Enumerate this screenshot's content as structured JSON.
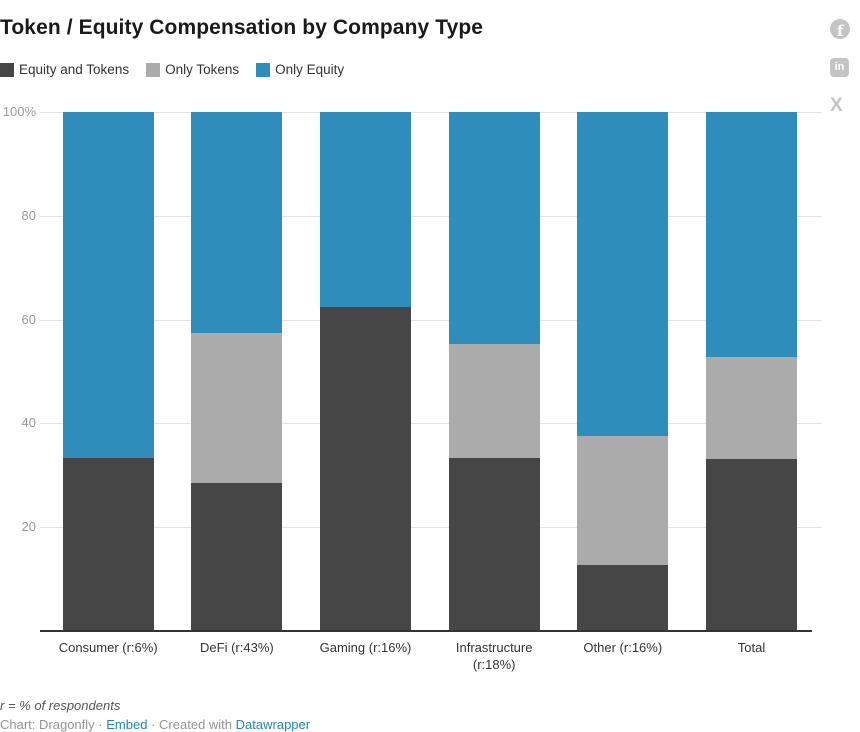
{
  "header": {
    "title": "Token / Equity Compensation by Company Type"
  },
  "social": {
    "facebook_glyph": "f",
    "linkedin_glyph": "in",
    "x_glyph": "X"
  },
  "chart_data": {
    "type": "bar",
    "stacked": true,
    "title": "Token / Equity Compensation by Company Type",
    "unit": "%",
    "categories": [
      "Consumer (r:6%)",
      "DeFi (r:43%)",
      "Gaming (r:16%)",
      "Infrastructure (r:18%)",
      "Other (r:16%)",
      "Total"
    ],
    "series": [
      {
        "name": "Equity and Tokens",
        "color": "#464646",
        "values": [
          33.3,
          28.6,
          62.4,
          33.3,
          12.7,
          33.1
        ]
      },
      {
        "name": "Only Tokens",
        "color": "#ababab",
        "values": [
          0,
          28.9,
          0,
          22.1,
          24.8,
          19.7
        ]
      },
      {
        "name": "Only Equity",
        "color": "#2e8dbb",
        "values": [
          66.7,
          42.5,
          37.6,
          44.6,
          62.5,
          47.2
        ]
      }
    ],
    "xlabel": "",
    "ylabel": "",
    "ylim": [
      0,
      100
    ],
    "yticks": [
      {
        "value": 20,
        "label": "20"
      },
      {
        "value": 40,
        "label": "40"
      },
      {
        "value": 60,
        "label": "60"
      },
      {
        "value": 80,
        "label": "80"
      },
      {
        "value": 100,
        "label": "100%"
      }
    ],
    "grid": "horizontal",
    "legend_position": "top-left"
  },
  "footer": {
    "note": "r = % of respondents",
    "credit_prefix": "Chart: Dragonfly",
    "separator": "·",
    "embed_label": "Embed",
    "created_with": "Created with",
    "datawrapper_label": "Datawrapper"
  },
  "colors": {
    "title": "#1a1a1a",
    "grid": "#e3e3e3",
    "axis": "#333333",
    "tick": "#9a9a9a",
    "icon": "#c4c4c4",
    "link": "#1e87bd",
    "background": "#ffffff"
  }
}
